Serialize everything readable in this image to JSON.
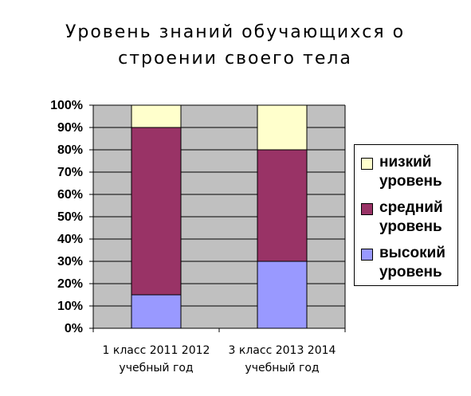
{
  "chart_data": {
    "type": "bar",
    "stacked": true,
    "percent": true,
    "title": "Уровень знаний обучающихся о строении своего тела",
    "categories": [
      [
        "1 класс 2011 2012",
        "учебный год"
      ],
      [
        "3 класс 2013 2014",
        "учебный год"
      ]
    ],
    "series": [
      {
        "name": "высокий уровень",
        "values": [
          15,
          30
        ],
        "color": "#9999ff"
      },
      {
        "name": "средний уровень",
        "values": [
          75,
          50
        ],
        "color": "#993366"
      },
      {
        "name": "низкий уровень",
        "values": [
          10,
          20
        ],
        "color": "#ffffcc"
      }
    ],
    "legend_order": [
      2,
      1,
      0
    ],
    "ylim": [
      0,
      100
    ],
    "yticks": [
      0,
      10,
      20,
      30,
      40,
      50,
      60,
      70,
      80,
      90,
      100
    ],
    "ytick_suffix": "%",
    "grid": true,
    "plot_background": "#c0c0c0",
    "legend_position": "right"
  }
}
